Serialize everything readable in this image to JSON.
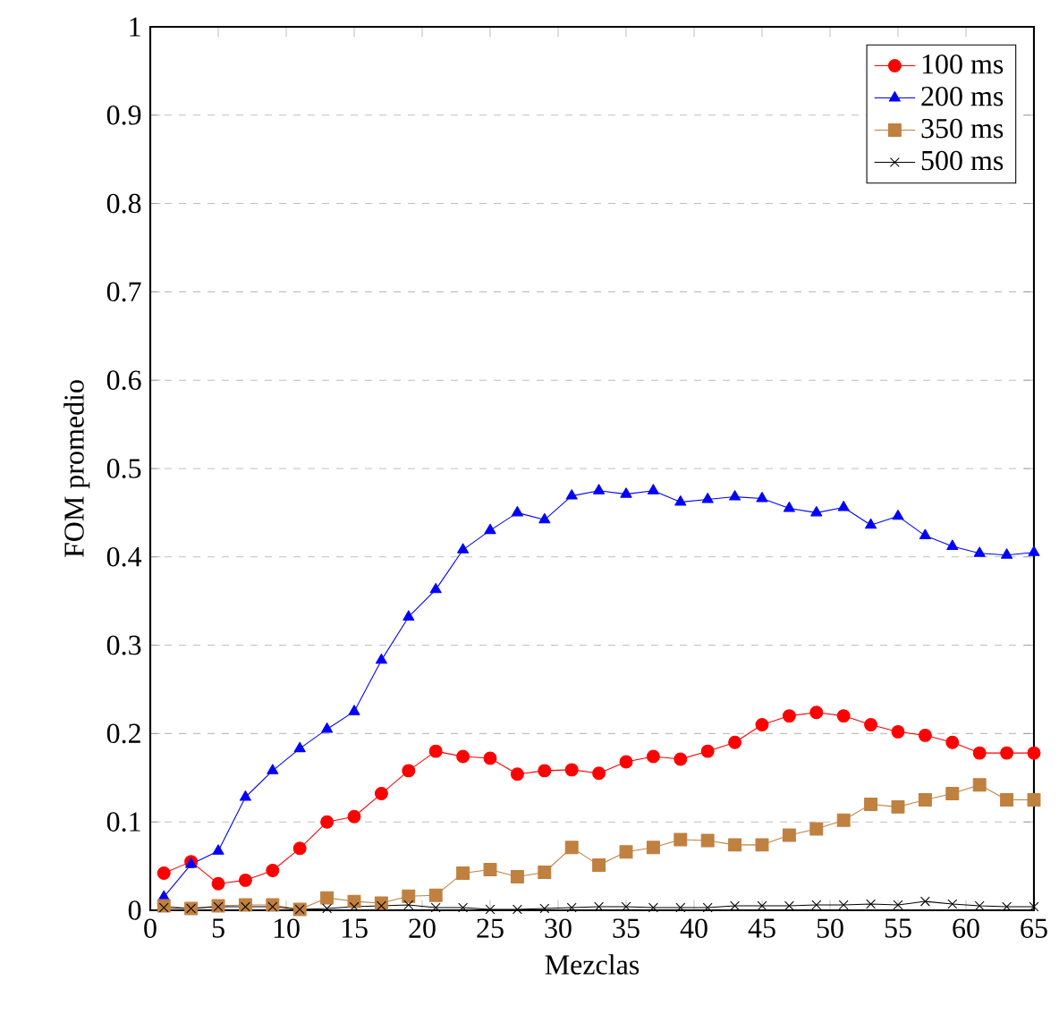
{
  "chart_data": {
    "type": "line",
    "xlabel": "Mezclas",
    "ylabel": "FOM promedio",
    "x": [
      1,
      3,
      5,
      7,
      9,
      11,
      13,
      15,
      17,
      19,
      21,
      23,
      25,
      27,
      29,
      31,
      33,
      35,
      37,
      39,
      41,
      43,
      45,
      47,
      49,
      51,
      53,
      55,
      57,
      59,
      61,
      63,
      65
    ],
    "series": [
      {
        "name": "100 ms",
        "color": "#ff0000",
        "marker": "circle",
        "values": [
          0.042,
          0.055,
          0.03,
          0.034,
          0.045,
          0.07,
          0.1,
          0.106,
          0.132,
          0.158,
          0.18,
          0.174,
          0.172,
          0.154,
          0.158,
          0.159,
          0.155,
          0.168,
          0.174,
          0.171,
          0.18,
          0.19,
          0.21,
          0.22,
          0.224,
          0.22,
          0.21,
          0.202,
          0.198,
          0.19,
          0.178,
          0.178,
          0.178
        ]
      },
      {
        "name": "200 ms",
        "color": "#0000ff",
        "marker": "triangle",
        "values": [
          0.015,
          0.052,
          0.067,
          0.128,
          0.158,
          0.183,
          0.205,
          0.225,
          0.283,
          0.332,
          0.363,
          0.408,
          0.43,
          0.45,
          0.442,
          0.469,
          0.475,
          0.471,
          0.475,
          0.462,
          0.465,
          0.468,
          0.466,
          0.455,
          0.45,
          0.456,
          0.436,
          0.446,
          0.424,
          0.412,
          0.404,
          0.402,
          0.405
        ]
      },
      {
        "name": "350 ms",
        "color": "#bf8040",
        "marker": "square",
        "values": [
          0.005,
          0.002,
          0.005,
          0.006,
          0.006,
          0.001,
          0.014,
          0.01,
          0.008,
          0.016,
          0.017,
          0.042,
          0.046,
          0.038,
          0.043,
          0.071,
          0.051,
          0.066,
          0.071,
          0.08,
          0.079,
          0.074,
          0.074,
          0.085,
          0.092,
          0.102,
          0.12,
          0.117,
          0.125,
          0.132,
          0.142,
          0.125,
          0.125
        ]
      },
      {
        "name": "500 ms",
        "color": "#000000",
        "marker": "cross",
        "values": [
          0.003,
          0.002,
          0.004,
          0.004,
          0.004,
          0.001,
          0.002,
          0.004,
          0.005,
          0.006,
          0.003,
          0.003,
          0.001,
          0.001,
          0.002,
          0.003,
          0.004,
          0.004,
          0.003,
          0.003,
          0.003,
          0.005,
          0.005,
          0.005,
          0.006,
          0.006,
          0.007,
          0.006,
          0.01,
          0.007,
          0.005,
          0.004,
          0.004
        ]
      }
    ],
    "xlim": [
      0,
      65
    ],
    "xticks": [
      0,
      5,
      10,
      15,
      20,
      25,
      30,
      35,
      40,
      45,
      50,
      55,
      60,
      65
    ],
    "ylim": [
      0,
      1
    ],
    "yticks": [
      0,
      0.1,
      0.2,
      0.3,
      0.4,
      0.5,
      0.6,
      0.7,
      0.8,
      0.9,
      1
    ],
    "grid": "y",
    "legend": "top right",
    "line_style": "solid"
  }
}
